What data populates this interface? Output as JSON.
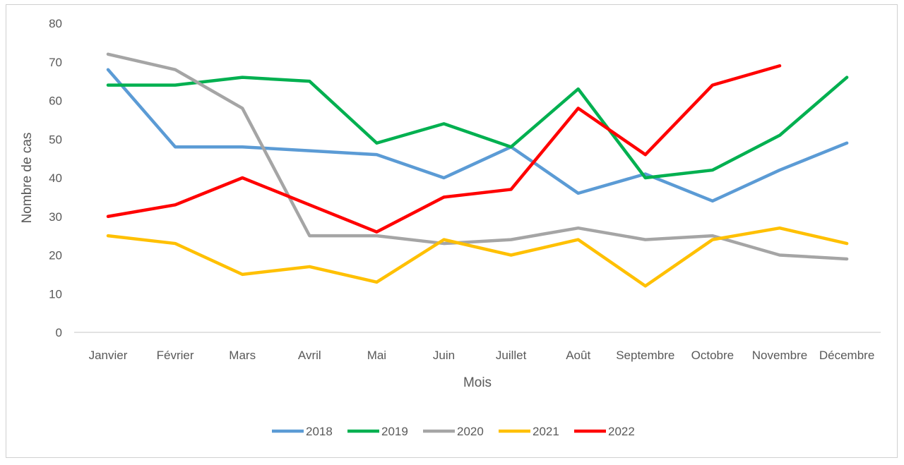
{
  "chart_data": {
    "type": "line",
    "title": "",
    "xlabel": "Mois",
    "ylabel": "Nombre de cas",
    "ylim": [
      0,
      80
    ],
    "yticks": [
      "0",
      "10",
      "20",
      "30",
      "40",
      "50",
      "60",
      "70",
      "80"
    ],
    "categories": [
      "Janvier",
      "Février",
      "Mars",
      "Avril",
      "Mai",
      "Juin",
      "Juillet",
      "Août",
      "Septembre",
      "Octobre",
      "Novembre",
      "Décembre"
    ],
    "legend_position": "bottom",
    "grid": false,
    "series": [
      {
        "name": "2018",
        "color": "#5b9bd5",
        "values": [
          68,
          48,
          48,
          47,
          46,
          40,
          48,
          36,
          41,
          34,
          42,
          49
        ]
      },
      {
        "name": "2019",
        "color": "#00b050",
        "values": [
          64,
          64,
          66,
          65,
          49,
          54,
          48,
          63,
          40,
          42,
          51,
          66
        ]
      },
      {
        "name": "2020",
        "color": "#a5a5a5",
        "values": [
          72,
          68,
          58,
          25,
          25,
          23,
          24,
          27,
          24,
          25,
          20,
          19
        ]
      },
      {
        "name": "2021",
        "color": "#ffc000",
        "values": [
          25,
          23,
          15,
          17,
          13,
          24,
          20,
          24,
          12,
          24,
          27,
          23
        ]
      },
      {
        "name": "2022",
        "color": "#ff0000",
        "values": [
          30,
          33,
          40,
          33,
          26,
          35,
          37,
          58,
          46,
          64,
          69,
          null
        ]
      }
    ]
  }
}
